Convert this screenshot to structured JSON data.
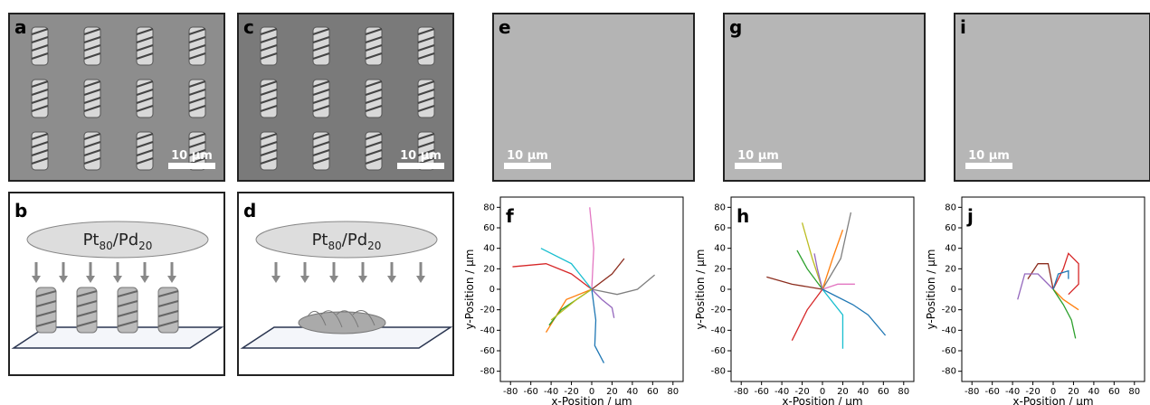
{
  "images": [
    {
      "panel_label": "a",
      "scale_bar": "10 µm"
    },
    {
      "panel_label": "c",
      "scale_bar": "10 µm"
    },
    {
      "panel_label": "e",
      "scale_bar": "10 µm"
    },
    {
      "panel_label": "g",
      "scale_bar": "10 µm"
    },
    {
      "panel_label": "i",
      "scale_bar": "10 µm"
    }
  ],
  "schematics": [
    {
      "panel_label": "b",
      "source": {
        "element_a": "Pt",
        "sub_a": "80",
        "element_b": "/Pd",
        "sub_b": "20"
      }
    },
    {
      "panel_label": "d",
      "source": {
        "element_a": "Pt",
        "sub_a": "80",
        "element_b": "/Pd",
        "sub_b": "20"
      }
    }
  ],
  "chart_data": [
    {
      "type": "line",
      "panel_label": "f",
      "xlabel": "x-Position / μm",
      "ylabel": "y-Position / μm",
      "xlim": [
        -90,
        90
      ],
      "ylim": [
        -90,
        90
      ],
      "xticks": [
        -80,
        -60,
        -40,
        -20,
        0,
        20,
        40,
        60,
        80
      ],
      "yticks": [
        -80,
        -60,
        -40,
        -20,
        0,
        20,
        40,
        60,
        80
      ],
      "series": [
        {
          "color": "#e377c2",
          "x": [
            0,
            2,
            -2
          ],
          "values": [
            0,
            40,
            80
          ]
        },
        {
          "color": "#d62728",
          "x": [
            0,
            -20,
            -45,
            -78
          ],
          "values": [
            0,
            15,
            25,
            22
          ]
        },
        {
          "color": "#17becf",
          "x": [
            0,
            -20,
            -50
          ],
          "values": [
            0,
            25,
            40
          ]
        },
        {
          "color": "#8c2d1e",
          "x": [
            0,
            20,
            32
          ],
          "values": [
            0,
            15,
            30
          ]
        },
        {
          "color": "#7f7f7f",
          "x": [
            0,
            25,
            45,
            62
          ],
          "values": [
            0,
            -5,
            0,
            14
          ]
        },
        {
          "color": "#9467bd",
          "x": [
            0,
            10,
            20,
            22
          ],
          "values": [
            0,
            -10,
            -18,
            -28
          ]
        },
        {
          "color": "#1f77b4",
          "x": [
            0,
            4,
            3,
            12
          ],
          "values": [
            0,
            -30,
            -55,
            -72
          ]
        },
        {
          "color": "#ff7f0e",
          "x": [
            0,
            -25,
            -45
          ],
          "values": [
            0,
            -10,
            -42
          ]
        },
        {
          "color": "#2ca02c",
          "x": [
            0,
            -30,
            -42
          ],
          "values": [
            0,
            -20,
            -35
          ]
        },
        {
          "color": "#bcbd22",
          "x": [
            0,
            -15,
            -40
          ],
          "values": [
            0,
            -10,
            -30
          ]
        }
      ]
    },
    {
      "type": "line",
      "panel_label": "h",
      "xlabel": "x-Position / μm",
      "ylabel": "y-Position / μm",
      "xlim": [
        -90,
        90
      ],
      "ylim": [
        -90,
        90
      ],
      "xticks": [
        -80,
        -60,
        -40,
        -20,
        0,
        20,
        40,
        60,
        80
      ],
      "yticks": [
        -80,
        -60,
        -40,
        -20,
        0,
        20,
        40,
        60,
        80
      ],
      "series": [
        {
          "color": "#e377c2",
          "x": [
            0,
            15,
            32
          ],
          "values": [
            0,
            5,
            5
          ]
        },
        {
          "color": "#8c2d1e",
          "x": [
            0,
            -30,
            -55
          ],
          "values": [
            0,
            5,
            12
          ]
        },
        {
          "color": "#d62728",
          "x": [
            0,
            -15,
            -30
          ],
          "values": [
            0,
            -20,
            -50
          ]
        },
        {
          "color": "#7f7f7f",
          "x": [
            0,
            18,
            28
          ],
          "values": [
            0,
            30,
            75
          ]
        },
        {
          "color": "#ff7f0e",
          "x": [
            0,
            10,
            20
          ],
          "values": [
            0,
            30,
            58
          ]
        },
        {
          "color": "#bcbd22",
          "x": [
            0,
            -10,
            -20
          ],
          "values": [
            0,
            30,
            65
          ]
        },
        {
          "color": "#2ca02c",
          "x": [
            0,
            -15,
            -25
          ],
          "values": [
            0,
            20,
            38
          ]
        },
        {
          "color": "#9467bd",
          "x": [
            0,
            -5,
            -8
          ],
          "values": [
            0,
            20,
            35
          ]
        },
        {
          "color": "#17becf",
          "x": [
            0,
            20,
            20
          ],
          "values": [
            0,
            -25,
            -58
          ]
        },
        {
          "color": "#1f77b4",
          "x": [
            0,
            30,
            45,
            62
          ],
          "values": [
            0,
            -15,
            -25,
            -45
          ]
        }
      ]
    },
    {
      "type": "line",
      "panel_label": "j",
      "xlabel": "x-Position / μm",
      "ylabel": "y-Position / μm",
      "xlim": [
        -90,
        90
      ],
      "ylim": [
        -90,
        90
      ],
      "xticks": [
        -80,
        -60,
        -40,
        -20,
        0,
        20,
        40,
        60,
        80
      ],
      "yticks": [
        -80,
        -60,
        -40,
        -20,
        0,
        20,
        40,
        60,
        80
      ],
      "series": [
        {
          "color": "#d62728",
          "x": [
            0,
            10,
            15,
            25,
            25,
            15
          ],
          "values": [
            0,
            20,
            35,
            25,
            5,
            -5
          ]
        },
        {
          "color": "#8c2d1e",
          "x": [
            0,
            -5,
            -15,
            -25
          ],
          "values": [
            0,
            25,
            25,
            10
          ]
        },
        {
          "color": "#9467bd",
          "x": [
            0,
            -15,
            -28,
            -35
          ],
          "values": [
            0,
            15,
            15,
            -10
          ]
        },
        {
          "color": "#1f77b4",
          "x": [
            0,
            5,
            15,
            15
          ],
          "values": [
            0,
            15,
            18,
            10
          ]
        },
        {
          "color": "#ff7f0e",
          "x": [
            0,
            10,
            25
          ],
          "values": [
            0,
            -10,
            -20
          ]
        },
        {
          "color": "#2ca02c",
          "x": [
            0,
            10,
            18,
            22
          ],
          "values": [
            0,
            -15,
            -30,
            -48
          ]
        }
      ]
    }
  ]
}
